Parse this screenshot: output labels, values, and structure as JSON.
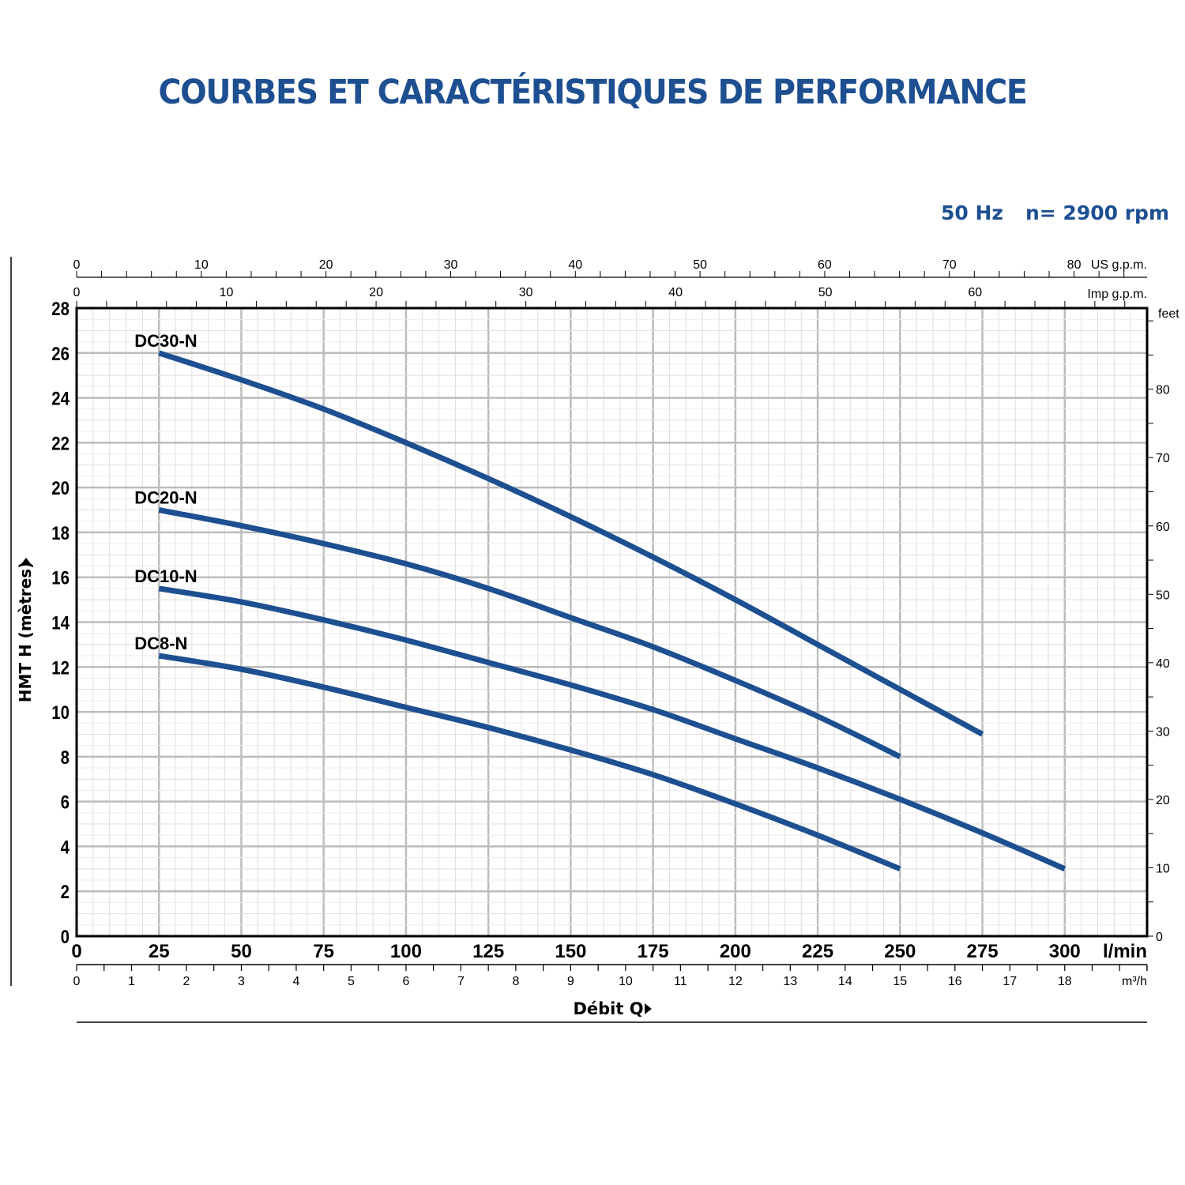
{
  "title": "COURBES ET CARACTÉRISTIQUES DE PERFORMANCE",
  "conditions": {
    "frequency": "50 Hz",
    "speed": "n= 2900 rpm"
  },
  "chart_data": {
    "type": "line",
    "xlabel": "Débit Q",
    "ylabel": "HMT H (mètres)",
    "x_unit": "l/min",
    "xlim": [
      0,
      325
    ],
    "ylim": [
      0,
      28
    ],
    "x_ticks": [
      0,
      25,
      50,
      75,
      100,
      125,
      150,
      175,
      200,
      225,
      250,
      275,
      300
    ],
    "y_ticks": [
      0,
      2,
      4,
      6,
      8,
      10,
      12,
      14,
      16,
      18,
      20,
      22,
      24,
      26,
      28
    ],
    "grid": true,
    "secondary_axes": {
      "us_gpm": {
        "label": "US g.p.m.",
        "ticks": [
          0,
          10,
          20,
          30,
          40,
          50,
          60,
          70,
          80
        ]
      },
      "imp_gpm": {
        "label": "Imp g.p.m.",
        "ticks": [
          0,
          10,
          20,
          30,
          40,
          50,
          60
        ]
      },
      "m3h": {
        "label": "m³/h",
        "ticks": [
          0,
          1,
          2,
          3,
          4,
          5,
          6,
          7,
          8,
          9,
          10,
          11,
          12,
          13,
          14,
          15,
          16,
          17,
          18
        ]
      },
      "feet": {
        "label": "feet",
        "ticks": [
          0,
          10,
          20,
          30,
          40,
          50,
          60,
          70,
          80
        ]
      }
    },
    "line_color": "#1d4f91",
    "series": [
      {
        "name": "DC30-N",
        "x": [
          25,
          50,
          75,
          100,
          125,
          150,
          175,
          200,
          225,
          250,
          275
        ],
        "y": [
          26,
          24.8,
          23.5,
          22,
          20.4,
          18.7,
          16.9,
          15,
          13,
          11,
          9
        ]
      },
      {
        "name": "DC20-N",
        "x": [
          25,
          50,
          75,
          100,
          125,
          150,
          175,
          200,
          225,
          250
        ],
        "y": [
          19,
          18.3,
          17.5,
          16.6,
          15.5,
          14.2,
          12.9,
          11.4,
          9.8,
          8
        ]
      },
      {
        "name": "DC10-N",
        "x": [
          25,
          50,
          75,
          100,
          125,
          150,
          175,
          200,
          225,
          250,
          275,
          300
        ],
        "y": [
          15.5,
          14.9,
          14.1,
          13.2,
          12.2,
          11.2,
          10.1,
          8.8,
          7.5,
          6.1,
          4.6,
          3
        ]
      },
      {
        "name": "DC8-N",
        "x": [
          25,
          50,
          75,
          100,
          125,
          150,
          175,
          200,
          225,
          250
        ],
        "y": [
          12.5,
          11.9,
          11.1,
          10.2,
          9.3,
          8.3,
          7.2,
          5.9,
          4.5,
          3
        ]
      }
    ]
  }
}
